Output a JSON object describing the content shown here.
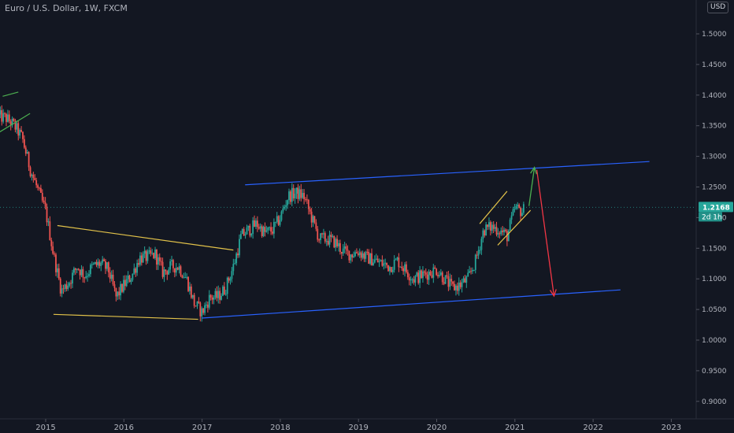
{
  "header": {
    "symbol_title": "Euro / U.S. Dollar, 1W, FXCM",
    "currency": "USD"
  },
  "colors": {
    "background": "#131722",
    "up_candle": "#26a69a",
    "down_candle": "#ef5350",
    "channel_line": "#2962ff",
    "wedge_line": "#e3c34a",
    "arrow_up": "#4caf50",
    "arrow_down": "#f23645",
    "price_badge": "#26a69a"
  },
  "chart_data": {
    "type": "candlestick",
    "title": "Euro / U.S. Dollar, 1W, FXCM",
    "x_axis": {
      "range": [
        2014.5,
        2023.3
      ],
      "tick_labels": [
        "2015",
        "2016",
        "2017",
        "2018",
        "2019",
        "2020",
        "2021",
        "2022",
        "2023"
      ],
      "tick_values": [
        2015,
        2016,
        2017,
        2018,
        2019,
        2020,
        2021,
        2022,
        2023
      ]
    },
    "y_axis": {
      "range": [
        0.86,
        1.445
      ],
      "side": "right",
      "tick_labels": [
        "1.5000",
        "1.4500",
        "1.4000",
        "1.3500",
        "1.3000",
        "1.2500",
        "1.2000",
        "1.1500",
        "1.1000",
        "1.0500",
        "1.0000",
        "0.9500",
        "0.9000"
      ],
      "tick_values": [
        1.5,
        1.45,
        1.4,
        1.35,
        1.3,
        1.25,
        1.2,
        1.15,
        1.1,
        1.05,
        1.0,
        0.95,
        0.9
      ]
    },
    "grid": false,
    "last_price": {
      "label": "1.2168",
      "value": 1.2168,
      "countdown": "2d 1h"
    },
    "price_path": [
      [
        2014.4,
        1.365
      ],
      [
        2014.5,
        1.362
      ],
      [
        2014.6,
        1.35
      ],
      [
        2014.7,
        1.33
      ],
      [
        2014.8,
        1.28
      ],
      [
        2014.9,
        1.245
      ],
      [
        2015.0,
        1.21
      ],
      [
        2015.1,
        1.14
      ],
      [
        2015.2,
        1.08
      ],
      [
        2015.3,
        1.095
      ],
      [
        2015.4,
        1.12
      ],
      [
        2015.5,
        1.105
      ],
      [
        2015.6,
        1.12
      ],
      [
        2015.7,
        1.125
      ],
      [
        2015.8,
        1.115
      ],
      [
        2015.9,
        1.07
      ],
      [
        2016.0,
        1.09
      ],
      [
        2016.1,
        1.105
      ],
      [
        2016.2,
        1.135
      ],
      [
        2016.3,
        1.135
      ],
      [
        2016.4,
        1.14
      ],
      [
        2016.5,
        1.11
      ],
      [
        2016.6,
        1.12
      ],
      [
        2016.7,
        1.12
      ],
      [
        2016.8,
        1.1
      ],
      [
        2016.9,
        1.06
      ],
      [
        2017.0,
        1.045
      ],
      [
        2017.1,
        1.07
      ],
      [
        2017.2,
        1.07
      ],
      [
        2017.3,
        1.085
      ],
      [
        2017.4,
        1.12
      ],
      [
        2017.5,
        1.17
      ],
      [
        2017.6,
        1.18
      ],
      [
        2017.7,
        1.19
      ],
      [
        2017.8,
        1.175
      ],
      [
        2017.9,
        1.18
      ],
      [
        2018.0,
        1.2
      ],
      [
        2018.1,
        1.235
      ],
      [
        2018.2,
        1.24
      ],
      [
        2018.3,
        1.235
      ],
      [
        2018.4,
        1.2
      ],
      [
        2018.5,
        1.165
      ],
      [
        2018.6,
        1.165
      ],
      [
        2018.7,
        1.16
      ],
      [
        2018.8,
        1.145
      ],
      [
        2018.9,
        1.14
      ],
      [
        2019.0,
        1.145
      ],
      [
        2019.1,
        1.135
      ],
      [
        2019.2,
        1.13
      ],
      [
        2019.3,
        1.125
      ],
      [
        2019.4,
        1.12
      ],
      [
        2019.5,
        1.13
      ],
      [
        2019.6,
        1.115
      ],
      [
        2019.7,
        1.1
      ],
      [
        2019.8,
        1.105
      ],
      [
        2019.9,
        1.11
      ],
      [
        2020.0,
        1.115
      ],
      [
        2020.1,
        1.1
      ],
      [
        2020.2,
        1.085
      ],
      [
        2020.3,
        1.09
      ],
      [
        2020.4,
        1.1
      ],
      [
        2020.5,
        1.13
      ],
      [
        2020.6,
        1.18
      ],
      [
        2020.7,
        1.185
      ],
      [
        2020.8,
        1.18
      ],
      [
        2020.9,
        1.17
      ],
      [
        2021.0,
        1.215
      ],
      [
        2021.1,
        1.21
      ],
      [
        2021.13,
        1.2168
      ]
    ],
    "annotations": [
      {
        "kind": "trendline",
        "color": "#2962ff",
        "points": [
          [
            2017.55,
            1.2535
          ],
          [
            2022.72,
            1.2915
          ]
        ]
      },
      {
        "kind": "trendline",
        "color": "#2962ff",
        "points": [
          [
            2017.0,
            1.036
          ],
          [
            2022.35,
            1.082
          ]
        ]
      },
      {
        "kind": "trendline",
        "color": "#e3c34a",
        "points": [
          [
            2015.15,
            1.187
          ],
          [
            2017.4,
            1.147
          ]
        ]
      },
      {
        "kind": "trendline",
        "color": "#e3c34a",
        "points": [
          [
            2015.1,
            1.042
          ],
          [
            2016.95,
            1.034
          ]
        ]
      },
      {
        "kind": "trendline",
        "color": "#e3c34a",
        "points": [
          [
            2020.55,
            1.19
          ],
          [
            2020.9,
            1.243
          ]
        ]
      },
      {
        "kind": "trendline",
        "color": "#e3c34a",
        "points": [
          [
            2020.78,
            1.155
          ],
          [
            2021.2,
            1.212
          ]
        ]
      },
      {
        "kind": "trendline",
        "color": "#4caf50",
        "points": [
          [
            2014.35,
            1.335
          ],
          [
            2014.8,
            1.37
          ]
        ]
      },
      {
        "kind": "trendline",
        "color": "#4caf50",
        "points": [
          [
            2014.45,
            1.398
          ],
          [
            2014.65,
            1.405
          ]
        ]
      },
      {
        "kind": "arrow",
        "color": "#4caf50",
        "points": [
          [
            2021.18,
            1.219
          ],
          [
            2021.25,
            1.282
          ]
        ]
      },
      {
        "kind": "arrow",
        "color": "#f23645",
        "points": [
          [
            2021.28,
            1.278
          ],
          [
            2021.5,
            1.072
          ]
        ]
      }
    ]
  }
}
